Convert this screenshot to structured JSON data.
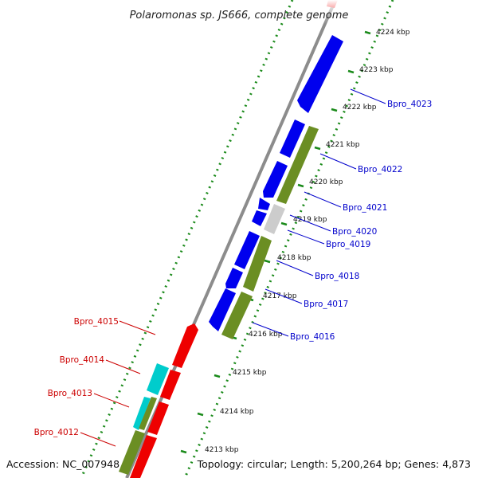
{
  "title": "Polaromonas sp. JS666, complete genome",
  "footer": {
    "accession": "Accession: NC_007948",
    "summary": "Topology: circular; Length: 5,200,264 bp; Genes: 4,873"
  },
  "colors": {
    "forward_label": "#0000cc",
    "reverse_label": "#cc0000",
    "cds_blue": "#0000ee",
    "cds_olive": "#6b8e23",
    "cds_red": "#ee0000",
    "cds_cyan": "#00cccc",
    "cds_grey": "#cccccc",
    "backbone": "#8c8c8c",
    "gc_dots": "#1a8a1a"
  },
  "ticks": [
    "4224 kbp",
    "4223 kbp",
    "4222 kbp",
    "4221 kbp",
    "4220 kbp",
    "4219 kbp",
    "4218 kbp",
    "4217 kbp",
    "4216 kbp",
    "4215 kbp",
    "4214 kbp",
    "4213 kbp"
  ],
  "gene_labels": {
    "forward": [
      "Bpro_4023",
      "Bpro_4022",
      "Bpro_4021",
      "Bpro_4020",
      "Bpro_4019",
      "Bpro_4018",
      "Bpro_4017",
      "Bpro_4016"
    ],
    "reverse": [
      "Bpro_4015",
      "Bpro_4014",
      "Bpro_4013",
      "Bpro_4012"
    ]
  }
}
